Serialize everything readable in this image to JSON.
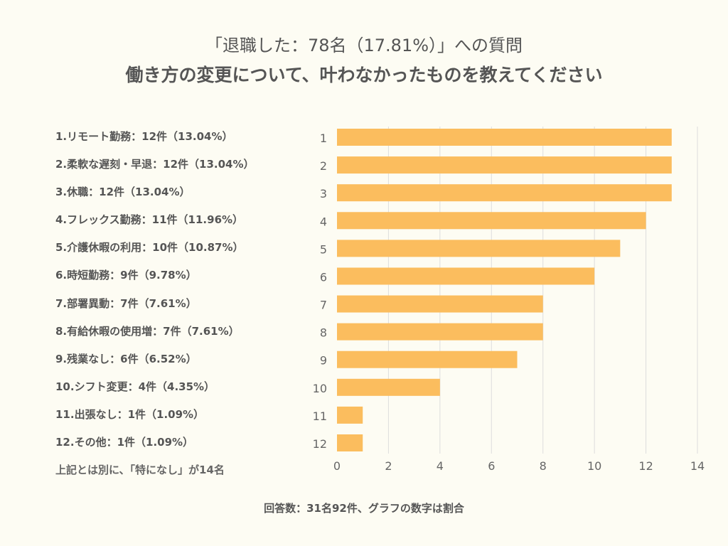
{
  "title_line1": "「退職した：78名（17.81%）」への質問",
  "title_line2": "働き方の変更について、叶わなかったものを教えてください",
  "labels": [
    "1.リモート勤務：12件（13.04%）",
    "2.柔軟な遅刻・早退：12件（13.04%）",
    "3.休職：12件（13.04%）",
    "4.フレックス勤務：11件（11.96%）",
    "5.介護休暇の利用：10件（10.87%）",
    "6.時短勤務：9件（9.78%）",
    "7.部署異動：7件（7.61%）",
    "8.有給休暇の使用増：7件（7.61%）",
    "9.残業なし：6件（6.52%）",
    "10.シフト変更：4件（4.35%）",
    "11.出張なし：1件（1.09%）",
    "12.その他：1件（1.09%）"
  ],
  "note": "上記とは別に、「特になし」が14名",
  "footer": "回答数：31名92件、グラフの数字は割合",
  "colors": {
    "bar": "#fbbd5e",
    "grid": "#dddddd",
    "background": "#fdfcf3"
  },
  "chart_data": {
    "type": "bar",
    "orientation": "horizontal",
    "categories": [
      "1",
      "2",
      "3",
      "4",
      "5",
      "6",
      "7",
      "8",
      "9",
      "10",
      "11",
      "12"
    ],
    "values": [
      13,
      13,
      13,
      12,
      11,
      10,
      8,
      8,
      7,
      4,
      1,
      1
    ],
    "xlim": [
      0,
      14
    ],
    "xticks": [
      "0",
      "2",
      "4",
      "6",
      "8",
      "10",
      "12",
      "14"
    ],
    "grid": true
  }
}
